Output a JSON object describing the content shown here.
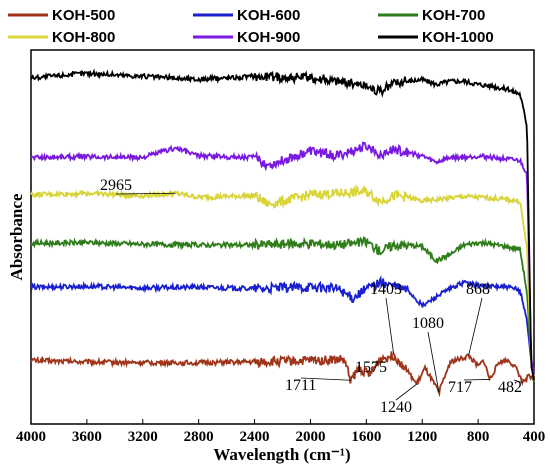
{
  "chart_data": {
    "type": "line",
    "title": "",
    "xlabel": "Wavelength (cm⁻¹)",
    "ylabel": "Absorbance",
    "xlim": [
      4000,
      400
    ],
    "x_ticks": [
      4000,
      3600,
      3200,
      2800,
      2400,
      2000,
      1600,
      1200,
      800,
      400
    ],
    "yaxis_ticks_shown": false,
    "legend_position": "top",
    "series": [
      {
        "name": "KOH-500",
        "color": "#a0341a",
        "offset": 0.0,
        "points": [
          [
            4000,
            0.3
          ],
          [
            3600,
            0.28
          ],
          [
            3200,
            0.27
          ],
          [
            2800,
            0.27
          ],
          [
            2400,
            0.28
          ],
          [
            2000,
            0.3
          ],
          [
            1760,
            0.31
          ],
          [
            1711,
            0.05
          ],
          [
            1650,
            0.2
          ],
          [
            1575,
            0.12
          ],
          [
            1500,
            0.32
          ],
          [
            1403,
            0.36
          ],
          [
            1320,
            0.2
          ],
          [
            1240,
            0.0
          ],
          [
            1180,
            0.2
          ],
          [
            1080,
            -0.1
          ],
          [
            1000,
            0.28
          ],
          [
            900,
            0.33
          ],
          [
            868,
            0.36
          ],
          [
            800,
            0.22
          ],
          [
            760,
            0.3
          ],
          [
            717,
            0.06
          ],
          [
            650,
            0.28
          ],
          [
            580,
            0.3
          ],
          [
            520,
            0.18
          ],
          [
            482,
            0.02
          ],
          [
            440,
            0.1
          ],
          [
            400,
            0.05
          ]
        ]
      },
      {
        "name": "KOH-600",
        "color": "#1a1fd0",
        "offset": 0.9,
        "points": [
          [
            4000,
            0.32
          ],
          [
            3600,
            0.33
          ],
          [
            3200,
            0.31
          ],
          [
            2800,
            0.32
          ],
          [
            2400,
            0.3
          ],
          [
            2000,
            0.32
          ],
          [
            1800,
            0.3
          ],
          [
            1700,
            0.18
          ],
          [
            1600,
            0.3
          ],
          [
            1500,
            0.38
          ],
          [
            1400,
            0.33
          ],
          [
            1300,
            0.28
          ],
          [
            1200,
            0.08
          ],
          [
            1100,
            0.2
          ],
          [
            1000,
            0.3
          ],
          [
            900,
            0.38
          ],
          [
            800,
            0.34
          ],
          [
            700,
            0.33
          ],
          [
            600,
            0.32
          ],
          [
            500,
            0.28
          ],
          [
            450,
            -0.1
          ],
          [
            420,
            -0.6
          ],
          [
            400,
            -0.8
          ]
        ]
      },
      {
        "name": "KOH-700",
        "color": "#2e7d1a",
        "offset": 1.45,
        "points": [
          [
            4000,
            0.32
          ],
          [
            3600,
            0.33
          ],
          [
            3200,
            0.31
          ],
          [
            2800,
            0.3
          ],
          [
            2400,
            0.3
          ],
          [
            2000,
            0.32
          ],
          [
            1800,
            0.3
          ],
          [
            1600,
            0.34
          ],
          [
            1500,
            0.22
          ],
          [
            1400,
            0.3
          ],
          [
            1300,
            0.3
          ],
          [
            1200,
            0.28
          ],
          [
            1100,
            0.1
          ],
          [
            1000,
            0.18
          ],
          [
            900,
            0.3
          ],
          [
            800,
            0.33
          ],
          [
            700,
            0.31
          ],
          [
            600,
            0.28
          ],
          [
            500,
            0.25
          ],
          [
            450,
            -0.3
          ],
          [
            420,
            -1.2
          ],
          [
            400,
            -1.4
          ]
        ]
      },
      {
        "name": "KOH-800",
        "color": "#d8d43a",
        "offset": 2.1,
        "points": [
          [
            4000,
            0.28
          ],
          [
            3600,
            0.3
          ],
          [
            3200,
            0.27
          ],
          [
            2965,
            0.3
          ],
          [
            2800,
            0.25
          ],
          [
            2400,
            0.27
          ],
          [
            2300,
            0.16
          ],
          [
            2000,
            0.28
          ],
          [
            1800,
            0.3
          ],
          [
            1600,
            0.32
          ],
          [
            1500,
            0.2
          ],
          [
            1400,
            0.27
          ],
          [
            1300,
            0.25
          ],
          [
            1200,
            0.2
          ],
          [
            1100,
            0.22
          ],
          [
            1000,
            0.24
          ],
          [
            900,
            0.26
          ],
          [
            800,
            0.25
          ],
          [
            700,
            0.24
          ],
          [
            600,
            0.22
          ],
          [
            500,
            0.2
          ],
          [
            450,
            -0.4
          ],
          [
            420,
            -1.8
          ],
          [
            400,
            -2.0
          ]
        ]
      },
      {
        "name": "KOH-900",
        "color": "#7a1ae0",
        "offset": 2.55,
        "points": [
          [
            4000,
            0.3
          ],
          [
            3600,
            0.31
          ],
          [
            3200,
            0.3
          ],
          [
            2965,
            0.42
          ],
          [
            2800,
            0.32
          ],
          [
            2400,
            0.3
          ],
          [
            2300,
            0.2
          ],
          [
            2000,
            0.38
          ],
          [
            1800,
            0.32
          ],
          [
            1600,
            0.44
          ],
          [
            1500,
            0.34
          ],
          [
            1400,
            0.4
          ],
          [
            1300,
            0.36
          ],
          [
            1200,
            0.32
          ],
          [
            1100,
            0.24
          ],
          [
            1000,
            0.3
          ],
          [
            900,
            0.3
          ],
          [
            800,
            0.32
          ],
          [
            700,
            0.3
          ],
          [
            600,
            0.28
          ],
          [
            500,
            0.26
          ],
          [
            450,
            0.1
          ],
          [
            420,
            -2.2
          ],
          [
            400,
            -2.4
          ]
        ]
      },
      {
        "name": "KOH-1000",
        "color": "#000000",
        "offset": 3.25,
        "points": [
          [
            4000,
            0.6
          ],
          [
            3600,
            0.66
          ],
          [
            3200,
            0.62
          ],
          [
            2800,
            0.58
          ],
          [
            2400,
            0.62
          ],
          [
            2000,
            0.6
          ],
          [
            1800,
            0.56
          ],
          [
            1600,
            0.5
          ],
          [
            1500,
            0.42
          ],
          [
            1400,
            0.54
          ],
          [
            1300,
            0.56
          ],
          [
            1200,
            0.58
          ],
          [
            1100,
            0.52
          ],
          [
            1000,
            0.56
          ],
          [
            900,
            0.56
          ],
          [
            800,
            0.52
          ],
          [
            700,
            0.5
          ],
          [
            600,
            0.46
          ],
          [
            500,
            0.4
          ],
          [
            450,
            0.0
          ],
          [
            420,
            -3.0
          ],
          [
            400,
            -3.2
          ]
        ]
      }
    ],
    "annotations": [
      {
        "label": "1711",
        "x": 1711,
        "series": "KOH-500"
      },
      {
        "label": "1575",
        "x": 1575,
        "series": "KOH-500"
      },
      {
        "label": "1403",
        "x": 1403,
        "series": "KOH-500"
      },
      {
        "label": "1240",
        "x": 1240,
        "series": "KOH-500"
      },
      {
        "label": "1080",
        "x": 1080,
        "series": "KOH-500"
      },
      {
        "label": "868",
        "x": 868,
        "series": "KOH-500"
      },
      {
        "label": "717",
        "x": 717,
        "series": "KOH-500"
      },
      {
        "label": "482",
        "x": 482,
        "series": "KOH-500"
      },
      {
        "label": "2965",
        "x": 2965,
        "series": "KOH-800"
      }
    ]
  }
}
